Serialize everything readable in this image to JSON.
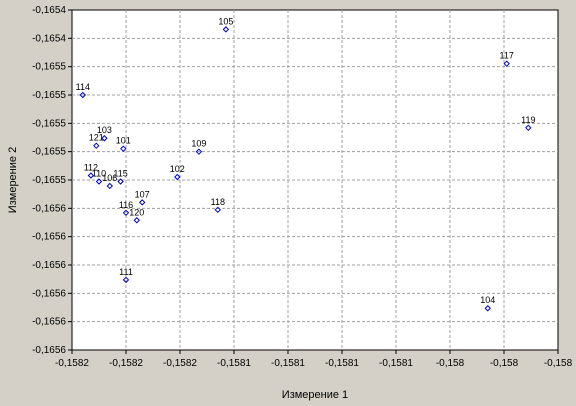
{
  "chart_data": {
    "type": "scatter",
    "title": "",
    "xlabel": "Измерение 1",
    "ylabel": "Измерение 2",
    "x_ticks": [
      "-0,1582",
      "-0,1582",
      "-0,1582",
      "-0,1581",
      "-0,1581",
      "-0,1581",
      "-0,1581",
      "-0,158",
      "-0,158",
      "-0,158"
    ],
    "y_ticks": [
      "-0,1654",
      "-0,1654",
      "-0,1655",
      "-0,1655",
      "-0,1655",
      "-0,1655",
      "-0,1655",
      "-0,1656",
      "-0,1656",
      "-0,1656",
      "-0,1656",
      "-0,1656",
      "-0,1656"
    ],
    "xlim": [
      -0.15816,
      -0.15798
    ],
    "ylim": [
      -0.165624,
      -0.165396
    ],
    "grid": true,
    "marker_color": "#0000cc",
    "points": [
      {
        "label": "101",
        "x": -0.158141,
        "y": -0.165489
      },
      {
        "label": "102",
        "x": -0.158121,
        "y": -0.165508
      },
      {
        "label": "103",
        "x": -0.158148,
        "y": -0.165482
      },
      {
        "label": "104",
        "x": -0.158006,
        "y": -0.165596
      },
      {
        "label": "105",
        "x": -0.158103,
        "y": -0.165409
      },
      {
        "label": "106",
        "x": -0.158146,
        "y": -0.165514
      },
      {
        "label": "107",
        "x": -0.158134,
        "y": -0.165525
      },
      {
        "label": "109",
        "x": -0.158113,
        "y": -0.165491
      },
      {
        "label": "110",
        "x": -0.15815,
        "y": -0.165511
      },
      {
        "label": "111",
        "x": -0.15814,
        "y": -0.165577
      },
      {
        "label": "112",
        "x": -0.158153,
        "y": -0.165507
      },
      {
        "label": "114",
        "x": -0.158156,
        "y": -0.165453
      },
      {
        "label": "115",
        "x": -0.158142,
        "y": -0.165511
      },
      {
        "label": "116",
        "x": -0.15814,
        "y": -0.165532
      },
      {
        "label": "117",
        "x": -0.157999,
        "y": -0.165432
      },
      {
        "label": "118",
        "x": -0.158106,
        "y": -0.16553
      },
      {
        "label": "119",
        "x": -0.157991,
        "y": -0.165475
      },
      {
        "label": "120",
        "x": -0.158136,
        "y": -0.165537
      },
      {
        "label": "121",
        "x": -0.158151,
        "y": -0.165487
      }
    ]
  }
}
